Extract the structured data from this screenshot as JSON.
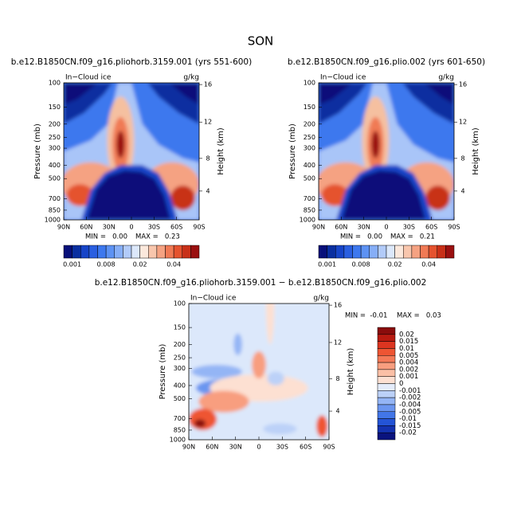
{
  "title": "SON",
  "chart_data": [
    {
      "type": "contour",
      "title": "b.e12.B1850CN.f09_g16.pliohorb.3159.001 (yrs 551-600)",
      "field_label": "In−Cloud ice",
      "units": "g/kg",
      "ylabel": "Pressure (mb)",
      "y2label": "Height (km)",
      "xlim": [
        90,
        -90
      ],
      "xticks": [
        {
          "value": 90,
          "label": "90N"
        },
        {
          "value": 60,
          "label": "60N"
        },
        {
          "value": 30,
          "label": "30N"
        },
        0,
        {
          "value": -30,
          "label": "30S"
        },
        {
          "value": -60,
          "label": "60S"
        },
        {
          "value": -90,
          "label": "90S"
        }
      ],
      "ylim": [
        1000,
        100
      ],
      "log_scale": true,
      "yticks": [
        100,
        150,
        200,
        250,
        300,
        400,
        500,
        700,
        850,
        1000
      ],
      "y2ticks": [
        16,
        12,
        8,
        4
      ],
      "min_text": "MIN =   0.00",
      "max_text": "MAX =   0.23",
      "colorbar": {
        "orientation": "horizontal",
        "labels": [
          "0.001",
          "0.008",
          "0.02",
          "0.04"
        ],
        "colors": [
          "#08107a",
          "#0a2fa0",
          "#1745c8",
          "#2a5fe0",
          "#3d78ee",
          "#5d92f3",
          "#86aef7",
          "#b2cbf9",
          "#dce8fb",
          "#fbe8dc",
          "#f8c6ad",
          "#f5a282",
          "#f07a55",
          "#e5532f",
          "#c83018",
          "#9a1010"
        ]
      }
    },
    {
      "type": "contour",
      "title": "b.e12.B1850CN.f09_g16.plio.002 (yrs 601-650)",
      "field_label": "In−Cloud ice",
      "units": "g/kg",
      "ylabel": "Pressure (mb)",
      "y2label": "Height (km)",
      "xlim": [
        90,
        -90
      ],
      "xticks": [
        {
          "value": 90,
          "label": "90N"
        },
        {
          "value": 60,
          "label": "60N"
        },
        {
          "value": 30,
          "label": "30N"
        },
        0,
        {
          "value": -30,
          "label": "30S"
        },
        {
          "value": -60,
          "label": "60S"
        },
        {
          "value": -90,
          "label": "90S"
        }
      ],
      "ylim": [
        1000,
        100
      ],
      "log_scale": true,
      "yticks": [
        100,
        150,
        200,
        250,
        300,
        400,
        500,
        700,
        850,
        1000
      ],
      "y2ticks": [
        16,
        12,
        8,
        4
      ],
      "min_text": "MIN =   0.00",
      "max_text": "MAX =   0.21",
      "colorbar": {
        "orientation": "horizontal",
        "labels": [
          "0.001",
          "0.008",
          "0.02",
          "0.04"
        ],
        "colors": [
          "#08107a",
          "#0a2fa0",
          "#1745c8",
          "#2a5fe0",
          "#3d78ee",
          "#5d92f3",
          "#86aef7",
          "#b2cbf9",
          "#dce8fb",
          "#fbe8dc",
          "#f8c6ad",
          "#f5a282",
          "#f07a55",
          "#e5532f",
          "#c83018",
          "#9a1010"
        ]
      }
    },
    {
      "type": "contour-diff",
      "title": "b.e12.B1850CN.f09_g16.pliohorb.3159.001 − b.e12.B1850CN.f09_g16.plio.002",
      "field_label": "In−Cloud ice",
      "units": "g/kg",
      "ylabel": "Pressure (mb)",
      "y2label": "Height (km)",
      "xlim": [
        90,
        -90
      ],
      "xticks": [
        {
          "value": 90,
          "label": "90N"
        },
        {
          "value": 60,
          "label": "60N"
        },
        {
          "value": 30,
          "label": "30N"
        },
        0,
        {
          "value": -30,
          "label": "30S"
        },
        {
          "value": -60,
          "label": "60S"
        },
        {
          "value": -90,
          "label": "90S"
        }
      ],
      "ylim": [
        1000,
        100
      ],
      "log_scale": true,
      "yticks": [
        100,
        150,
        200,
        250,
        300,
        400,
        500,
        700,
        850,
        1000
      ],
      "y2ticks": [
        16,
        12,
        8,
        4
      ],
      "min_text": "MIN =  -0.01",
      "max_text": "MAX =   0.03",
      "colorbar": {
        "orientation": "vertical",
        "levels": [
          0.02,
          0.015,
          0.01,
          0.005,
          0.004,
          0.002,
          0.001,
          0,
          -0.001,
          -0.002,
          -0.004,
          -0.005,
          -0.01,
          -0.015,
          -0.02
        ],
        "colors": [
          "#8a0c0c",
          "#b81a10",
          "#dc3520",
          "#ee5533",
          "#f47a58",
          "#f89e7f",
          "#fbc0a6",
          "#fde0d2",
          "#e4ecfb",
          "#bcd1f8",
          "#94b5f5",
          "#6b96f0",
          "#4276e8",
          "#2454d6",
          "#1432b0",
          "#0a137e"
        ]
      }
    }
  ]
}
